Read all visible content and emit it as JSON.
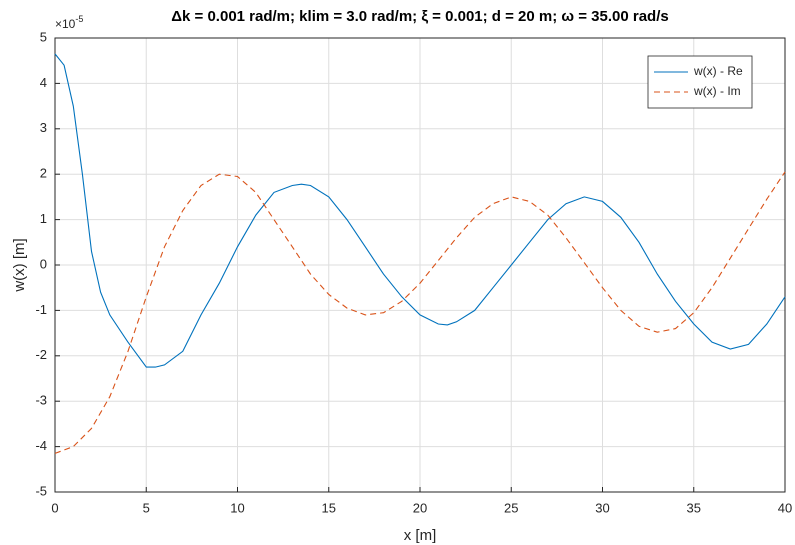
{
  "chart_data": {
    "type": "line",
    "title": "Δk = 0.001 rad/m; klim = 3.0 rad/m; ξ = 0.001; d = 20 m; ω = 35.00 rad/s",
    "xlabel": "x [m]",
    "ylabel": "w(x) [m]",
    "y_multiplier": {
      "base": "×10",
      "exponent": "-5"
    },
    "xlim": [
      0,
      40
    ],
    "ylim": [
      -5,
      5
    ],
    "xticks": [
      0,
      5,
      10,
      15,
      20,
      25,
      30,
      35,
      40
    ],
    "yticks": [
      -5,
      -4,
      -3,
      -2,
      -1,
      0,
      1,
      2,
      3,
      4,
      5
    ],
    "grid": true,
    "legend": "northeast",
    "series": [
      {
        "name": "w(x) - Re",
        "color": "#0072BD",
        "dash": "solid",
        "x": [
          0,
          0.5,
          1,
          1.5,
          2,
          2.5,
          3,
          4,
          5,
          5.5,
          6,
          7,
          8,
          9,
          10,
          11,
          12,
          13,
          13.5,
          14,
          15,
          16,
          17,
          18,
          19,
          20,
          21,
          21.5,
          22,
          23,
          24,
          25,
          26,
          27,
          28,
          29,
          30,
          31,
          32,
          33,
          34,
          35,
          36,
          37,
          38,
          39,
          40
        ],
        "values": [
          4.65,
          4.4,
          3.5,
          2.0,
          0.3,
          -0.6,
          -1.1,
          -1.7,
          -2.25,
          -2.25,
          -2.2,
          -1.9,
          -1.1,
          -0.4,
          0.4,
          1.1,
          1.6,
          1.75,
          1.78,
          1.75,
          1.5,
          1.0,
          0.4,
          -0.2,
          -0.7,
          -1.1,
          -1.3,
          -1.32,
          -1.25,
          -1.0,
          -0.5,
          0.0,
          0.5,
          1.0,
          1.35,
          1.5,
          1.4,
          1.05,
          0.5,
          -0.2,
          -0.8,
          -1.3,
          -1.7,
          -1.85,
          -1.75,
          -1.3,
          -0.7
        ]
      },
      {
        "name": "w(x) - Im",
        "color": "#D95319",
        "dash": "dashed",
        "x": [
          0,
          1,
          2,
          3,
          4,
          5,
          6,
          7,
          8,
          9,
          10,
          11,
          12,
          13,
          14,
          15,
          16,
          17,
          18,
          19,
          20,
          21,
          22,
          23,
          24,
          25,
          26,
          27,
          28,
          29,
          30,
          31,
          32,
          33,
          34,
          35,
          36,
          37,
          38,
          39,
          40
        ],
        "values": [
          -4.15,
          -4.0,
          -3.6,
          -2.9,
          -1.9,
          -0.7,
          0.4,
          1.2,
          1.75,
          2.0,
          1.95,
          1.6,
          1.0,
          0.4,
          -0.2,
          -0.65,
          -0.95,
          -1.1,
          -1.05,
          -0.8,
          -0.4,
          0.1,
          0.6,
          1.05,
          1.35,
          1.5,
          1.4,
          1.1,
          0.6,
          0.05,
          -0.5,
          -1.0,
          -1.35,
          -1.48,
          -1.4,
          -1.05,
          -0.5,
          0.15,
          0.8,
          1.45,
          2.05
        ]
      }
    ]
  }
}
